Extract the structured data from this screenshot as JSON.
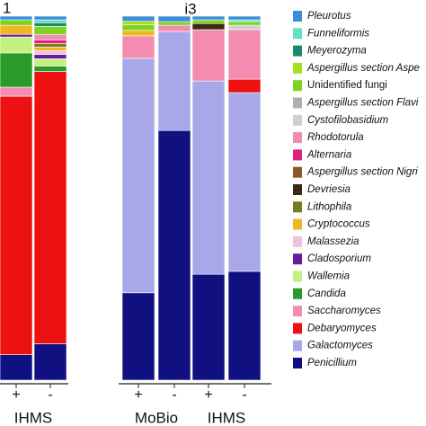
{
  "chart_data": {
    "type": "stacked_bar",
    "panel_titles": [
      "1",
      "i3"
    ],
    "categories": [
      "+",
      "-",
      "+",
      "-",
      "+",
      "-"
    ],
    "groups": [
      "IHMS",
      "MoBio",
      "IHMS"
    ],
    "ylim": [
      0,
      100
    ],
    "series": [
      {
        "name": "Pleurotus",
        "color": "#3b8fd8",
        "values": [
          1,
          1,
          1.4,
          1.5,
          1,
          1
        ]
      },
      {
        "name": "Funneliformis",
        "color": "#5fe0c4",
        "values": [
          0,
          0.8,
          0,
          0,
          0,
          0.5
        ]
      },
      {
        "name": "Meyerozyma",
        "color": "#1a8a6a",
        "values": [
          0,
          1,
          0,
          0,
          0,
          0
        ]
      },
      {
        "name": "Aspergillus section Aspe",
        "color": "#a8e020",
        "values": [
          0,
          0,
          1,
          0,
          0,
          0
        ]
      },
      {
        "name": "Unidentified fungi",
        "color": "#7ed321",
        "values": [
          1.5,
          2.2,
          1.5,
          1,
          1,
          1
        ]
      },
      {
        "name": "Aspergillus section Flavi",
        "color": "#b0b0b0",
        "values": [
          0,
          0,
          0,
          0,
          0,
          0
        ]
      },
      {
        "name": "Cystofilobasidium",
        "color": "#d0d0d0",
        "values": [
          0,
          0,
          0,
          0,
          0,
          1.2
        ]
      },
      {
        "name": "Rhodotorula",
        "color": "#f08cb4",
        "values": [
          0,
          1.5,
          0,
          0,
          0,
          0
        ]
      },
      {
        "name": "Alternaria",
        "color": "#e0207a",
        "values": [
          0,
          1,
          0,
          0,
          0,
          0
        ]
      },
      {
        "name": "Aspergillus section Nigri",
        "color": "#8b5a2b",
        "values": [
          0,
          0,
          0,
          0,
          0,
          0
        ]
      },
      {
        "name": "Devriesia",
        "color": "#3a2a10",
        "values": [
          0,
          0,
          0,
          0,
          1.7,
          0
        ]
      },
      {
        "name": "Lithophila",
        "color": "#7a7a20",
        "values": [
          0,
          1,
          0,
          0,
          0,
          0
        ]
      },
      {
        "name": "Cryptococcus",
        "color": "#f0b820",
        "values": [
          2.5,
          1,
          1.5,
          0,
          0,
          0
        ]
      },
      {
        "name": "Malassezia",
        "color": "#f0c0e0",
        "values": [
          0,
          1,
          0,
          0,
          0,
          0
        ]
      },
      {
        "name": "Cladosporium",
        "color": "#6a1aa0",
        "values": [
          0.7,
          1.2,
          0,
          0,
          0,
          0
        ]
      },
      {
        "name": "Wallemia",
        "color": "#c4f080",
        "values": [
          4.4,
          2,
          0,
          0,
          0,
          0
        ]
      },
      {
        "name": "Candida",
        "color": "#2a9a2a",
        "values": [
          9.4,
          1.5,
          0,
          0,
          0,
          0
        ]
      },
      {
        "name": "Saccharomyces",
        "color": "#f48cb0",
        "values": [
          2.5,
          0,
          6.2,
          1.7,
          14.1,
          13.6
        ]
      },
      {
        "name": "Debaryomyces",
        "color": "#ee1111",
        "values": [
          71,
          74.8,
          0,
          0,
          0,
          3.7
        ]
      },
      {
        "name": "Galactomyces",
        "color": "#a8a8e8",
        "values": [
          0,
          0,
          64.4,
          27.2,
          53.1,
          49.1
        ]
      },
      {
        "name": "Penicillium",
        "color": "#101080",
        "values": [
          7,
          10,
          24,
          68.6,
          29.1,
          29.9
        ]
      }
    ]
  }
}
